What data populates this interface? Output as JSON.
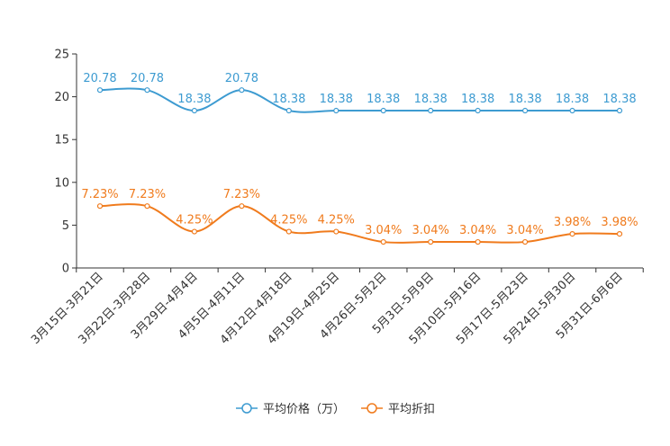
{
  "chart_data": {
    "type": "line",
    "title": "",
    "xlabel": "",
    "ylabel": "",
    "ylim": [
      0,
      25
    ],
    "yticks": [
      0,
      5,
      10,
      15,
      20,
      25
    ],
    "grid": false,
    "legend_position": "bottom-center",
    "categories": [
      "3月15日-3月21日",
      "3月22日-3月28日",
      "3月29日-4月4日",
      "4月5日-4月11日",
      "4月12日-4月18日",
      "4月19日-4月25日",
      "4月26日-5月2日",
      "5月3日-5月9日",
      "5月10日-5月16日",
      "5月17日-5月23日",
      "5月24日-5月30日",
      "5月31日-6月6日"
    ],
    "series": [
      {
        "name": "平均价格（万）",
        "color": "#3d9bd1",
        "values": [
          20.78,
          20.78,
          18.38,
          20.78,
          18.38,
          18.38,
          18.38,
          18.38,
          18.38,
          18.38,
          18.38,
          18.38
        ],
        "labels": [
          "20.78",
          "20.78",
          "18.38",
          "20.78",
          "18.38",
          "18.38",
          "18.38",
          "18.38",
          "18.38",
          "18.38",
          "18.38",
          "18.38"
        ]
      },
      {
        "name": "平均折扣",
        "color": "#f07b1d",
        "values": [
          7.23,
          7.23,
          4.25,
          7.23,
          4.25,
          4.25,
          3.04,
          3.04,
          3.04,
          3.04,
          3.98,
          3.98
        ],
        "labels": [
          "7.23%",
          "7.23%",
          "4.25%",
          "7.23%",
          "4.25%",
          "4.25%",
          "3.04%",
          "3.04%",
          "3.04%",
          "3.04%",
          "3.98%",
          "3.98%"
        ]
      }
    ]
  }
}
